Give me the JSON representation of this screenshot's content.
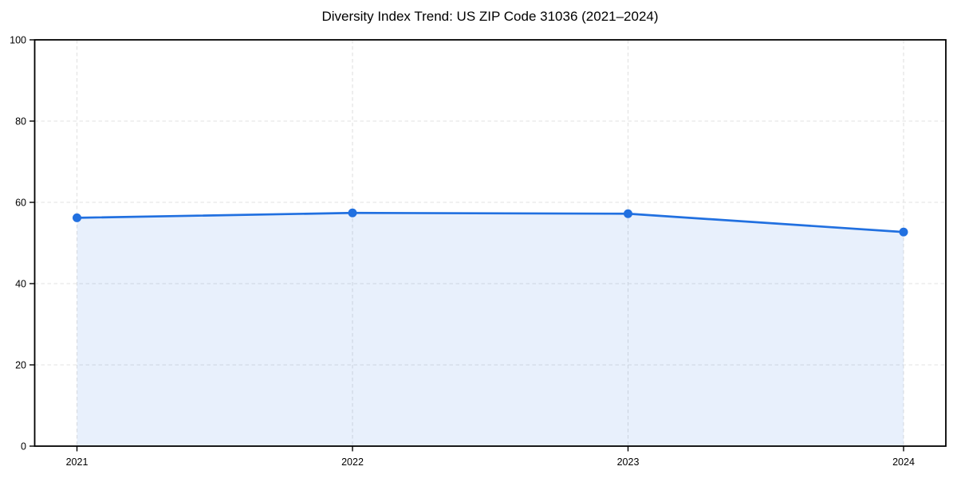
{
  "chart_data": {
    "type": "area",
    "title": "Diversity Index Trend: US ZIP Code 31036 (2021–2024)",
    "series_name": "Diversity Index",
    "x": [
      2021,
      2022,
      2023,
      2024
    ],
    "values": [
      56.2,
      57.4,
      57.2,
      52.7
    ],
    "xlabel": "",
    "ylabel": "",
    "ylim": [
      0,
      100
    ],
    "yticks": [
      0,
      20,
      40,
      60,
      80,
      100
    ],
    "xtick_labels": [
      "2021",
      "2022",
      "2023",
      "2024"
    ],
    "grid": true,
    "grid_style": "dashed",
    "legend_position": "none",
    "colors": {
      "line": "#2170e0",
      "marker": "#2170e0",
      "fill": "rgba(33, 112, 224, 0.10)",
      "grid": "#e1e1e1",
      "axis": "#000000",
      "tick_text": "#000000",
      "title_text": "#000000",
      "background": "#ffffff"
    }
  }
}
